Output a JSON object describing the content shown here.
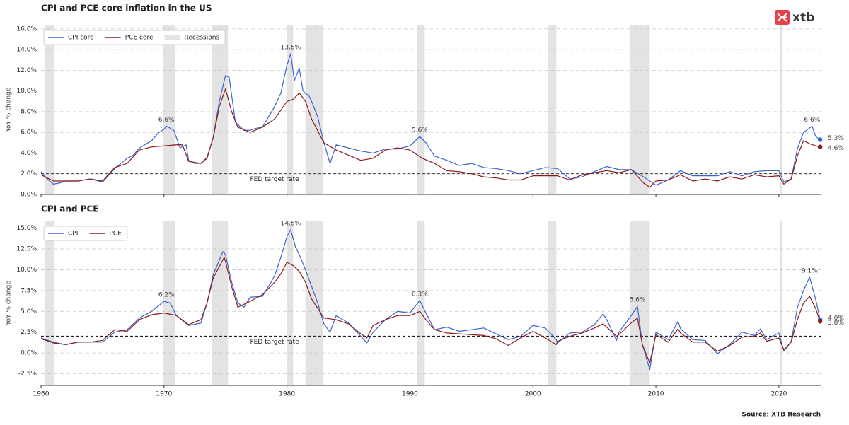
{
  "logo": "xtb",
  "source": "Source: XTB Research",
  "chart_data": [
    {
      "type": "line",
      "title": "CPI and PCE core inflation in the US",
      "ylabel": "YoY % change",
      "xlim": [
        1960,
        2023.4
      ],
      "ylim": [
        0,
        16.4
      ],
      "xticks": [
        1960,
        1970,
        1980,
        1990,
        2000,
        2010,
        2020
      ],
      "yticks": [
        {
          "value": 0,
          "label": "0.0%"
        },
        {
          "value": 2,
          "label": "2.0%"
        },
        {
          "value": 4,
          "label": "4.0%"
        },
        {
          "value": 6,
          "label": "6.0%"
        },
        {
          "value": 8,
          "label": "8.0%"
        },
        {
          "value": 10,
          "label": "10.0%"
        },
        {
          "value": 12,
          "label": "12.0%"
        },
        {
          "value": 14,
          "label": "14.0%"
        },
        {
          "value": 16,
          "label": "16.0%"
        }
      ],
      "grid": true,
      "legend": "upper left",
      "recessions_label": "Recessions",
      "recession_color": "#e3e3e3",
      "recessions": [
        [
          1960.3,
          1961.1
        ],
        [
          1969.9,
          1970.9
        ],
        [
          1973.9,
          1975.2
        ],
        [
          1980.0,
          1980.5
        ],
        [
          1981.5,
          1982.9
        ],
        [
          1990.6,
          1991.2
        ],
        [
          2001.2,
          2001.9
        ],
        [
          2007.9,
          2009.5
        ],
        [
          2020.1,
          2020.3
        ]
      ],
      "reference": {
        "value": 2,
        "label": "FED target rate"
      },
      "annotations": [
        {
          "x": 1970.2,
          "value": 6.6,
          "label": "6.6%"
        },
        {
          "x": 1980.3,
          "value": 13.6,
          "label": "13.6%"
        },
        {
          "x": 1990.8,
          "value": 5.6,
          "label": "5.6%"
        },
        {
          "x": 2022.7,
          "value": 6.6,
          "label": "6.6%"
        }
      ],
      "end_labels": [
        {
          "value": 5.3,
          "label": "5.3%"
        },
        {
          "value": 4.6,
          "label": "4.6%"
        }
      ],
      "series": [
        {
          "name": "CPI core",
          "color": "#3b63cf",
          "x": [
            1960,
            1960.5,
            1961,
            1961.5,
            1962,
            1963,
            1964,
            1965,
            1966,
            1967,
            1967.5,
            1968,
            1969,
            1969.5,
            1970,
            1970.2,
            1970.8,
            1971.3,
            1971.8,
            1972,
            1972.5,
            1973,
            1973.5,
            1974,
            1974.5,
            1975,
            1975.3,
            1975.8,
            1976.5,
            1977,
            1977.5,
            1978,
            1978.5,
            1979,
            1979.5,
            1980,
            1980.3,
            1980.6,
            1981,
            1981.3,
            1981.8,
            1982,
            1982.5,
            1983,
            1983.5,
            1984,
            1985,
            1986,
            1987,
            1988,
            1989,
            1990,
            1990.8,
            1991.3,
            1992,
            1993,
            1994,
            1995,
            1996,
            1997,
            1998,
            1999,
            2000,
            2001,
            2002,
            2003,
            2004,
            2005,
            2006,
            2007,
            2008,
            2009,
            2010,
            2011,
            2012,
            2013,
            2014,
            2015,
            2016,
            2017,
            2018,
            2019,
            2020,
            2020.4,
            2021,
            2021.5,
            2022,
            2022.7,
            2023,
            2023.35
          ],
          "values": [
            2.2,
            1.5,
            1.0,
            1.1,
            1.3,
            1.3,
            1.5,
            1.2,
            2.5,
            3.5,
            3.8,
            4.5,
            5.2,
            5.9,
            6.3,
            6.6,
            6.2,
            4.5,
            4.8,
            3.3,
            3.0,
            3.0,
            3.6,
            5.5,
            9.0,
            11.5,
            11.3,
            7.0,
            6.2,
            6.2,
            6.4,
            6.5,
            7.5,
            8.5,
            9.8,
            12.5,
            13.6,
            11.0,
            12.2,
            10.0,
            9.5,
            9.0,
            7.5,
            5.0,
            3.0,
            4.8,
            4.5,
            4.2,
            4.0,
            4.4,
            4.4,
            4.7,
            5.6,
            5.0,
            3.7,
            3.3,
            2.8,
            3.0,
            2.6,
            2.5,
            2.3,
            2.0,
            2.3,
            2.6,
            2.5,
            1.5,
            1.7,
            2.2,
            2.7,
            2.4,
            2.4,
            1.7,
            0.9,
            1.4,
            2.3,
            1.8,
            1.8,
            1.8,
            2.2,
            1.8,
            2.2,
            2.3,
            2.3,
            1.2,
            1.5,
            4.4,
            6.0,
            6.6,
            5.6,
            5.3
          ]
        },
        {
          "name": "PCE core",
          "color": "#8b1a1a",
          "x": [
            1960,
            1961,
            1962,
            1963,
            1964,
            1965,
            1966,
            1967,
            1968,
            1969,
            1970,
            1971,
            1971.5,
            1972,
            1973,
            1973.5,
            1974,
            1974.5,
            1975,
            1975.5,
            1976,
            1977,
            1978,
            1979,
            1980,
            1980.5,
            1981,
            1981.5,
            1982,
            1983,
            1984,
            1985,
            1986,
            1987,
            1988,
            1989,
            1990,
            1991,
            1992,
            1993,
            1994,
            1995,
            1996,
            1997,
            1998,
            1999,
            2000,
            2001,
            2002,
            2003,
            2004,
            2005,
            2006,
            2007,
            2008,
            2009,
            2009.5,
            2010,
            2011,
            2012,
            2013,
            2014,
            2015,
            2016,
            2017,
            2018,
            2019,
            2020,
            2020.4,
            2021,
            2021.5,
            2022,
            2022.5,
            2023,
            2023.35
          ],
          "values": [
            1.9,
            1.3,
            1.3,
            1.3,
            1.5,
            1.3,
            2.6,
            3.0,
            4.3,
            4.6,
            4.7,
            4.8,
            4.8,
            3.2,
            3.0,
            3.5,
            5.5,
            8.5,
            10.2,
            8.0,
            6.5,
            6.0,
            6.5,
            7.3,
            9.0,
            9.2,
            9.8,
            9.0,
            7.3,
            5.0,
            4.3,
            3.8,
            3.3,
            3.5,
            4.3,
            4.5,
            4.3,
            3.5,
            3.0,
            2.3,
            2.2,
            2.0,
            1.7,
            1.6,
            1.4,
            1.4,
            1.8,
            1.8,
            1.8,
            1.4,
            1.9,
            2.1,
            2.3,
            2.1,
            2.4,
            1.1,
            0.7,
            1.3,
            1.4,
            1.9,
            1.3,
            1.5,
            1.3,
            1.7,
            1.5,
            1.9,
            1.7,
            1.8,
            1.0,
            1.5,
            3.7,
            5.2,
            4.9,
            4.7,
            4.6
          ]
        }
      ]
    },
    {
      "type": "line",
      "title": "CPI and PCE",
      "ylabel": "YoY % change",
      "xlim": [
        1960,
        2023.4
      ],
      "ylim": [
        -3.9,
        15.9
      ],
      "xticks": [
        1960,
        1970,
        1980,
        1990,
        2000,
        2010,
        2020
      ],
      "yticks": [
        {
          "value": -2.5,
          "label": "-2.5%"
        },
        {
          "value": 0,
          "label": "0.0%"
        },
        {
          "value": 2.5,
          "label": "2.5%"
        },
        {
          "value": 5,
          "label": "5.0%"
        },
        {
          "value": 7.5,
          "label": "7.5%"
        },
        {
          "value": 10,
          "label": "10.0%"
        },
        {
          "value": 12.5,
          "label": "12.5%"
        },
        {
          "value": 15,
          "label": "15.0%"
        }
      ],
      "grid": true,
      "legend": "upper left",
      "recession_color": "#e3e3e3",
      "recessions": [
        [
          1960.3,
          1961.1
        ],
        [
          1969.9,
          1970.9
        ],
        [
          1973.9,
          1975.2
        ],
        [
          1980.0,
          1980.5
        ],
        [
          1981.5,
          1982.9
        ],
        [
          1990.6,
          1991.2
        ],
        [
          2001.2,
          2001.9
        ],
        [
          2007.9,
          2009.5
        ],
        [
          2020.1,
          2020.3
        ]
      ],
      "reference": {
        "value": 2,
        "label": "FED target rate"
      },
      "annotations": [
        {
          "x": 1970.2,
          "value": 6.2,
          "label": "6.2%"
        },
        {
          "x": 1980.3,
          "value": 14.8,
          "label": "14.8%"
        },
        {
          "x": 1990.8,
          "value": 6.3,
          "label": "6.3%"
        },
        {
          "x": 2008.5,
          "value": 5.6,
          "label": "5.6%"
        },
        {
          "x": 2022.5,
          "value": 9.1,
          "label": "9.1%"
        }
      ],
      "end_labels": [
        {
          "value": 4.0,
          "label": "4.0%"
        },
        {
          "value": 3.8,
          "label": "3.8%"
        }
      ],
      "series": [
        {
          "name": "CPI",
          "color": "#3b63cf",
          "x": [
            1960,
            1961,
            1962,
            1963,
            1964,
            1965,
            1966,
            1967,
            1968,
            1969,
            1970,
            1970.5,
            1971,
            1972,
            1973,
            1973.5,
            1974,
            1974.8,
            1975,
            1975.5,
            1976,
            1976.5,
            1977,
            1978,
            1978.7,
            1979,
            1979.5,
            1980,
            1980.3,
            1980.7,
            1981,
            1981.5,
            1982,
            1982.5,
            1983,
            1983.5,
            1984,
            1985,
            1986,
            1986.5,
            1987,
            1988,
            1989,
            1990,
            1990.8,
            1991.3,
            1992,
            1993,
            1994,
            1995,
            1996,
            1997,
            1998,
            1999,
            2000,
            2001,
            2001.9,
            2002,
            2003,
            2004,
            2005,
            2005.7,
            2006,
            2006.8,
            2007,
            2007.9,
            2008.5,
            2008.9,
            2009.5,
            2010,
            2011,
            2011.8,
            2012,
            2013,
            2014,
            2015,
            2016,
            2017,
            2018,
            2018.5,
            2019,
            2020,
            2020.4,
            2021,
            2021.5,
            2022,
            2022.5,
            2023,
            2023.35
          ],
          "values": [
            1.8,
            1.3,
            1.0,
            1.3,
            1.3,
            1.3,
            2.5,
            2.8,
            4.2,
            5.0,
            6.2,
            6.0,
            4.5,
            3.3,
            3.6,
            6.0,
            9.4,
            12.2,
            11.8,
            8.5,
            6.0,
            5.5,
            6.7,
            6.8,
            8.5,
            9.3,
            11.5,
            14.0,
            14.8,
            12.7,
            11.8,
            10.0,
            8.0,
            6.0,
            3.5,
            2.5,
            4.5,
            3.6,
            2.0,
            1.2,
            2.5,
            4.0,
            5.0,
            4.8,
            6.3,
            4.8,
            2.8,
            3.1,
            2.6,
            2.8,
            3.0,
            2.3,
            1.6,
            2.0,
            3.3,
            3.0,
            1.6,
            1.2,
            2.4,
            2.5,
            3.4,
            4.7,
            4.0,
            1.5,
            2.5,
            4.3,
            5.6,
            1.0,
            -2.0,
            2.5,
            1.6,
            3.8,
            2.9,
            1.6,
            1.5,
            -0.1,
            1.0,
            2.5,
            2.1,
            2.9,
            1.6,
            2.4,
            0.2,
            1.4,
            5.4,
            7.5,
            9.1,
            6.4,
            4.0
          ]
        },
        {
          "name": "PCE",
          "color": "#8b1a1a",
          "x": [
            1960,
            1961,
            1962,
            1963,
            1964,
            1965,
            1966,
            1967,
            1968,
            1969,
            1970,
            1971,
            1972,
            1973,
            1973.5,
            1974,
            1974.9,
            1975,
            1975.5,
            1976,
            1977,
            1978,
            1979,
            1979.5,
            1980,
            1980.5,
            1981,
            1981.5,
            1982,
            1983,
            1984,
            1985,
            1986,
            1986.5,
            1987,
            1988,
            1989,
            1990,
            1990.8,
            1991.3,
            1992,
            1993,
            1994,
            1995,
            1996,
            1997,
            1998,
            1999,
            2000,
            2001,
            2001.9,
            2002,
            2003,
            2004,
            2005,
            2005.7,
            2006,
            2006.8,
            2007,
            2007.9,
            2008.5,
            2008.9,
            2009.5,
            2010,
            2011,
            2011.8,
            2012,
            2013,
            2014,
            2015,
            2016,
            2017,
            2018,
            2018.5,
            2019,
            2020,
            2020.4,
            2021,
            2021.5,
            2022,
            2022.5,
            2023,
            2023.35
          ],
          "values": [
            1.7,
            1.2,
            1.0,
            1.3,
            1.3,
            1.5,
            2.8,
            2.6,
            4.0,
            4.6,
            4.8,
            4.5,
            3.4,
            4.0,
            6.0,
            9.0,
            11.5,
            11.0,
            8.0,
            5.5,
            6.2,
            7.0,
            8.5,
            9.5,
            10.9,
            10.5,
            9.8,
            8.5,
            6.5,
            4.2,
            4.0,
            3.5,
            2.3,
            1.8,
            3.3,
            4.0,
            4.5,
            4.5,
            5.0,
            4.0,
            2.8,
            2.4,
            2.3,
            2.2,
            2.1,
            1.7,
            0.9,
            1.8,
            2.6,
            1.8,
            1.0,
            1.4,
            2.0,
            2.4,
            3.0,
            3.5,
            3.1,
            2.0,
            2.2,
            3.5,
            4.2,
            1.0,
            -1.2,
            2.2,
            1.3,
            2.9,
            2.4,
            1.3,
            1.3,
            0.2,
            0.9,
            1.9,
            2.0,
            2.4,
            1.4,
            1.8,
            0.4,
            1.3,
            4.0,
            6.0,
            6.8,
            5.3,
            3.8
          ]
        }
      ]
    }
  ]
}
